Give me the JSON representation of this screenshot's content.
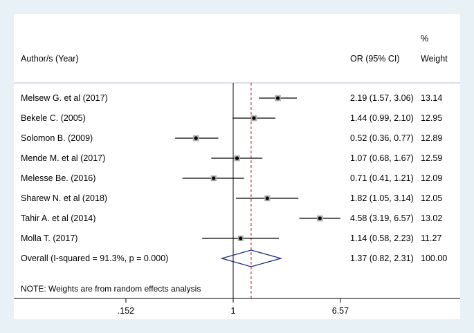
{
  "chart_data": {
    "type": "forest",
    "scale": "log",
    "header": {
      "study_col": "Author/s (Year)",
      "or_col": "OR (95% CI)",
      "weight_col_line1": "%",
      "weight_col_line2": "Weight"
    },
    "studies": [
      {
        "label": "Melsew G. et al (2017)",
        "or": 2.19,
        "lo": 1.57,
        "hi": 3.06,
        "or_text": "2.19 (1.57, 3.06)",
        "weight": "13.14",
        "weight_value": 13.14
      },
      {
        "label": "Bekele C.  (2005)",
        "or": 1.44,
        "lo": 0.99,
        "hi": 2.1,
        "or_text": "1.44 (0.99, 2.10)",
        "weight": "12.95",
        "weight_value": 12.95
      },
      {
        "label": "Solomon B.  (2009)",
        "or": 0.52,
        "lo": 0.36,
        "hi": 0.77,
        "or_text": "0.52 (0.36, 0.77)",
        "weight": "12.89",
        "weight_value": 12.89
      },
      {
        "label": "Mende M. et al (2017)",
        "or": 1.07,
        "lo": 0.68,
        "hi": 1.67,
        "or_text": "1.07 (0.68, 1.67)",
        "weight": "12.59",
        "weight_value": 12.59
      },
      {
        "label": "Melesse Be.  (2016)",
        "or": 0.71,
        "lo": 0.41,
        "hi": 1.21,
        "or_text": "0.71 (0.41, 1.21)",
        "weight": "12.09",
        "weight_value": 12.09
      },
      {
        "label": "Sharew N. et al (2018)",
        "or": 1.82,
        "lo": 1.05,
        "hi": 3.14,
        "or_text": "1.82 (1.05, 3.14)",
        "weight": "12.05",
        "weight_value": 12.05
      },
      {
        "label": "Tahir A. et al (2014)",
        "or": 4.58,
        "lo": 3.19,
        "hi": 6.57,
        "or_text": "4.58 (3.19, 6.57)",
        "weight": "13.02",
        "weight_value": 13.02
      },
      {
        "label": "Molla T.  (2017)",
        "or": 1.14,
        "lo": 0.58,
        "hi": 2.23,
        "or_text": "1.14 (0.58, 2.23)",
        "weight": "11.27",
        "weight_value": 11.27
      }
    ],
    "overall": {
      "label": "Overall  (I-squared = 91.3%, p = 0.000)",
      "or": 1.37,
      "lo": 0.82,
      "hi": 2.31,
      "or_text": "1.37 (0.82, 2.31)",
      "weight": "100.00"
    },
    "note": "NOTE: Weights are from random effects analysis",
    "x_ticks": [
      {
        "value": 0.152,
        "label": ".152"
      },
      {
        "value": 1,
        "label": "1"
      },
      {
        "value": 6.57,
        "label": "6.57"
      }
    ],
    "null_line": 1,
    "colors": {
      "background": "#e8f1f6",
      "plot": "#ffffff",
      "header_rule": "#b8b8d8",
      "overall_line": "#a0413b",
      "diamond": "#1a2a80",
      "marker": "#000000"
    }
  }
}
